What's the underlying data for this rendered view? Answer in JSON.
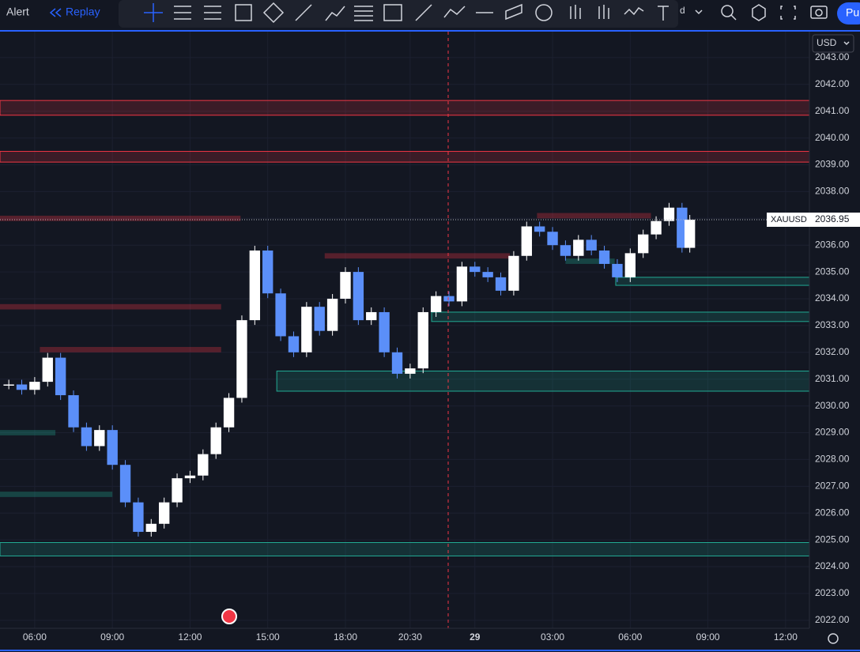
{
  "toolbar": {
    "alert": "Alert",
    "replay": "Replay",
    "menu": "d",
    "currency": "USD",
    "button": "Pu"
  },
  "chart": {
    "symbol": "XAUUSD",
    "last_price": 2036.95,
    "ylim": [
      2021.7,
      2043.97
    ],
    "yticks": [
      {
        "value": 2022,
        "label": "2022.00"
      },
      {
        "value": 2023,
        "label": "2023.00"
      },
      {
        "value": 2024,
        "label": "2024.00"
      },
      {
        "value": 2025,
        "label": "2025.00"
      },
      {
        "value": 2026,
        "label": "2026.00"
      },
      {
        "value": 2027,
        "label": "2027.00"
      },
      {
        "value": 2028,
        "label": "2028.00"
      },
      {
        "value": 2029,
        "label": "2029.00"
      },
      {
        "value": 2030,
        "label": "2030.00"
      },
      {
        "value": 2031,
        "label": "2031.00"
      },
      {
        "value": 2032,
        "label": "2032.00"
      },
      {
        "value": 2033,
        "label": "2033.00"
      },
      {
        "value": 2034,
        "label": "2034.00"
      },
      {
        "value": 2035,
        "label": "2035.00"
      },
      {
        "value": 2036,
        "label": "2036.00"
      },
      {
        "value": 2037,
        "label": "2037.00"
      },
      {
        "value": 2038,
        "label": "2038.00"
      },
      {
        "value": 2039,
        "label": "2039.00"
      },
      {
        "value": 2040,
        "label": "2040.00"
      },
      {
        "value": 2041,
        "label": "2041.00"
      },
      {
        "value": 2042,
        "label": "2042.00"
      },
      {
        "value": 2043,
        "label": "2043.00"
      }
    ],
    "xlim": [
      -1.34,
      29.92
    ],
    "xticks": [
      {
        "value": 0,
        "label": "06:00"
      },
      {
        "value": 3,
        "label": "09:00"
      },
      {
        "value": 6,
        "label": "12:00"
      },
      {
        "value": 9,
        "label": "15:00"
      },
      {
        "value": 12,
        "label": "18:00"
      },
      {
        "value": 14.5,
        "label": "20:30"
      },
      {
        "value": 17,
        "label": "29"
      },
      {
        "value": 20,
        "label": "03:00"
      },
      {
        "value": 23,
        "label": "06:00"
      },
      {
        "value": 26,
        "label": "09:00"
      },
      {
        "value": 29,
        "label": "12:00"
      }
    ],
    "zones": [
      {
        "top": 2041.4,
        "bottom": 2040.85,
        "start": -1.34,
        "end": 29.92,
        "color": "#f23645",
        "outline": true
      },
      {
        "top": 2039.5,
        "bottom": 2039.1,
        "start": -1.34,
        "end": 29.92,
        "color": "#f23645",
        "outline": true
      },
      {
        "top": 2031.3,
        "bottom": 2030.55,
        "start": 9.35,
        "end": 29.92,
        "color": "#22ab94",
        "outline": true
      },
      {
        "top": 2033.5,
        "bottom": 2033.15,
        "start": 15.33,
        "end": 29.92,
        "color": "#22ab94",
        "outline": true
      },
      {
        "top": 2034.8,
        "bottom": 2034.5,
        "start": 22.44,
        "end": 29.92,
        "color": "#22ab94",
        "outline": true
      },
      {
        "top": 2024.9,
        "bottom": 2024.4,
        "start": -1.34,
        "end": 29.92,
        "color": "#22ab94",
        "outline": true
      },
      {
        "top": 2037.1,
        "bottom": 2036.9,
        "start": -1.34,
        "end": 7.95,
        "color": "#f23645",
        "outline": false
      },
      {
        "top": 2033.8,
        "bottom": 2033.6,
        "start": -1.34,
        "end": 7.2,
        "color": "#f23645",
        "outline": false
      },
      {
        "top": 2032.2,
        "bottom": 2032.0,
        "start": 0.2,
        "end": 7.2,
        "color": "#f23645",
        "outline": false
      },
      {
        "top": 2035.7,
        "bottom": 2035.5,
        "start": 11.2,
        "end": 18.35,
        "color": "#f23645",
        "outline": false
      },
      {
        "top": 2037.2,
        "bottom": 2037.0,
        "start": 19.4,
        "end": 23.8,
        "color": "#f23645",
        "outline": false
      },
      {
        "top": 2029.1,
        "bottom": 2028.9,
        "start": -1.34,
        "end": 0.8,
        "color": "#22ab94",
        "outline": false
      },
      {
        "top": 2026.8,
        "bottom": 2026.6,
        "start": -1.34,
        "end": 3.0,
        "color": "#22ab94",
        "outline": false
      },
      {
        "top": 2035.5,
        "bottom": 2035.3,
        "start": 20.5,
        "end": 22.4,
        "color": "#22ab94",
        "outline": false
      }
    ],
    "candles": {
      "x": [
        -1,
        -0.5,
        0,
        0.5,
        1,
        1.5,
        2,
        2.5,
        3,
        3.5,
        4,
        4.5,
        5,
        5.5,
        6,
        6.5,
        7,
        7.5,
        8,
        8.5,
        9,
        9.5,
        10,
        10.5,
        11,
        11.5,
        12,
        12.5,
        13,
        13.5,
        14,
        14.5,
        15,
        15.5,
        16,
        16.5,
        17,
        17.5,
        18,
        18.5,
        19,
        19.5,
        20,
        20.5,
        21,
        21.5,
        22,
        22.5,
        23,
        23.5,
        24,
        24.5,
        25,
        25.3
      ],
      "close": [
        2030.8,
        2030.6,
        2030.9,
        2031.8,
        2030.4,
        2029.2,
        2028.5,
        2029.1,
        2027.8,
        2026.4,
        2025.3,
        2025.6,
        2026.4,
        2027.3,
        2027.4,
        2028.2,
        2029.2,
        2030.3,
        2033.2,
        2035.8,
        2034.2,
        2032.6,
        2032.0,
        2033.7,
        2032.8,
        2034.0,
        2035.0,
        2033.2,
        2033.5,
        2032.0,
        2031.2,
        2031.4,
        2033.5,
        2034.1,
        2033.9,
        2035.2,
        2035.0,
        2034.8,
        2034.3,
        2035.6,
        2036.7,
        2036.5,
        2036.0,
        2035.6,
        2036.2,
        2035.8,
        2035.3,
        2034.8,
        2035.7,
        2036.4,
        2036.9,
        2037.4,
        2035.9,
        2036.95
      ]
    }
  }
}
